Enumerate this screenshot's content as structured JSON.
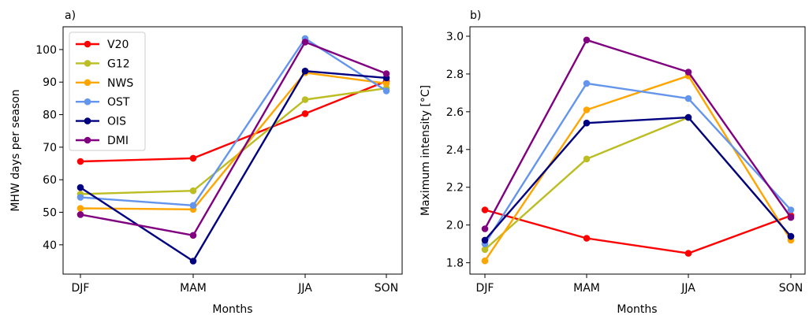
{
  "chart_data": [
    {
      "type": "line",
      "panel_label": "a)",
      "xlabel": "Months",
      "ylabel": "MHW days per season",
      "categories": [
        "DJF",
        "MAM",
        "JJA",
        "SON"
      ],
      "ylim": [
        31,
        107
      ],
      "yticks": [
        40,
        50,
        60,
        70,
        80,
        90,
        100
      ],
      "grid": false,
      "legend_position": "top-left",
      "series": [
        {
          "name": "V20",
          "color": "#ff0000",
          "values": [
            65.6,
            66.6,
            80.3,
            90.3
          ]
        },
        {
          "name": "G12",
          "color": "#bcbd22",
          "values": [
            55.6,
            56.6,
            84.6,
            88.1
          ]
        },
        {
          "name": "NWS",
          "color": "#ffa500",
          "values": [
            51.2,
            50.9,
            92.9,
            89.6
          ]
        },
        {
          "name": "OST",
          "color": "#6495ed",
          "values": [
            54.6,
            52.1,
            103.4,
            87.3
          ]
        },
        {
          "name": "OIS",
          "color": "#000080",
          "values": [
            57.6,
            35.0,
            93.4,
            91.3
          ]
        },
        {
          "name": "DMI",
          "color": "#800080",
          "values": [
            49.3,
            42.9,
            102.3,
            92.6
          ]
        }
      ]
    },
    {
      "type": "line",
      "panel_label": "b)",
      "xlabel": "Months",
      "ylabel": "Maximum intensity [°C]",
      "categories": [
        "DJF",
        "MAM",
        "JJA",
        "SON"
      ],
      "ylim": [
        1.74,
        3.05
      ],
      "yticks": [
        "1.8",
        "2.0",
        "2.2",
        "2.4",
        "2.6",
        "2.8",
        "3.0"
      ],
      "grid": false,
      "series": [
        {
          "color": "#ff0000",
          "values": [
            2.08,
            1.93,
            1.85,
            2.05
          ]
        },
        {
          "color": "#bcbd22",
          "values": [
            1.87,
            2.35,
            2.57,
            1.94
          ]
        },
        {
          "color": "#ffa500",
          "values": [
            1.81,
            2.61,
            2.79,
            1.92
          ]
        },
        {
          "color": "#6495ed",
          "values": [
            1.9,
            2.75,
            2.67,
            2.08
          ]
        },
        {
          "color": "#000080",
          "values": [
            1.92,
            2.54,
            2.57,
            1.94
          ]
        },
        {
          "color": "#800080",
          "values": [
            1.98,
            2.98,
            2.81,
            2.04
          ]
        }
      ]
    }
  ]
}
